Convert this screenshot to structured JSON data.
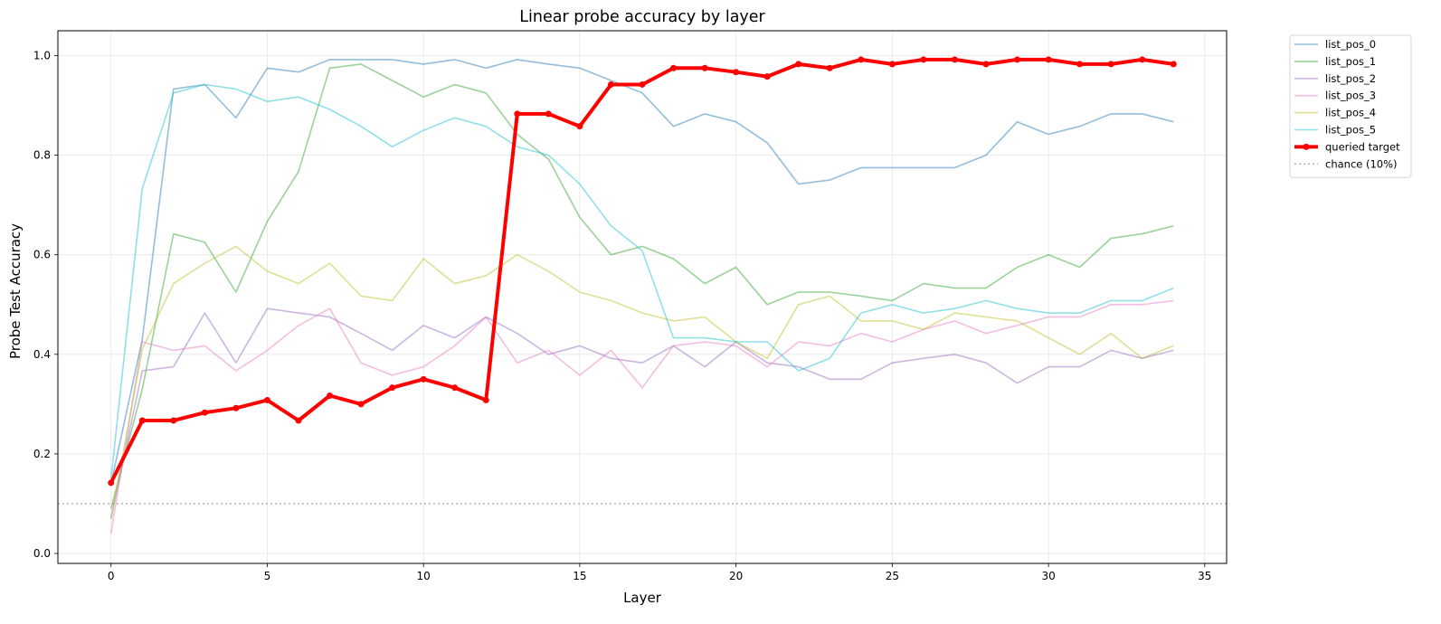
{
  "chart_data": {
    "type": "line",
    "title": "Linear probe accuracy by layer",
    "xlabel": "Layer",
    "ylabel": "Probe Test Accuracy",
    "xlim": [
      -1.7,
      35.7
    ],
    "ylim": [
      -0.02,
      1.05
    ],
    "xticks": [
      0,
      5,
      10,
      15,
      20,
      25,
      30,
      35
    ],
    "yticks": [
      0.0,
      0.2,
      0.4,
      0.6,
      0.8,
      1.0
    ],
    "xtick_labels": [
      "0",
      "5",
      "10",
      "15",
      "20",
      "25",
      "30",
      "35"
    ],
    "ytick_labels": [
      "0.0",
      "0.2",
      "0.4",
      "0.6",
      "0.8",
      "1.0"
    ],
    "grid": true,
    "legend_placement": "outside-top-right",
    "x": [
      0,
      1,
      2,
      3,
      4,
      5,
      6,
      7,
      8,
      9,
      10,
      11,
      12,
      13,
      14,
      15,
      16,
      17,
      18,
      19,
      20,
      21,
      22,
      23,
      24,
      25,
      26,
      27,
      28,
      29,
      30,
      31,
      32,
      33,
      34
    ],
    "series": [
      {
        "name": "list_pos_0",
        "color": "#1f77b4",
        "values": [
          0.14,
          0.43,
          0.933,
          0.942,
          0.875,
          0.975,
          0.967,
          0.992,
          0.992,
          0.992,
          0.983,
          0.992,
          0.975,
          0.992,
          0.983,
          0.975,
          0.95,
          0.925,
          0.858,
          0.883,
          0.867,
          0.825,
          0.742,
          0.75,
          0.775,
          0.775,
          0.775,
          0.775,
          0.8,
          0.867,
          0.842,
          0.858,
          0.883,
          0.883,
          0.867
        ]
      },
      {
        "name": "list_pos_1",
        "color": "#2ca02c",
        "values": [
          0.09,
          0.33,
          0.642,
          0.625,
          0.525,
          0.667,
          0.767,
          0.975,
          0.983,
          0.95,
          0.917,
          0.942,
          0.925,
          0.842,
          0.792,
          0.675,
          0.6,
          0.617,
          0.592,
          0.542,
          0.575,
          0.5,
          0.525,
          0.525,
          0.517,
          0.508,
          0.542,
          0.533,
          0.533,
          0.575,
          0.6,
          0.575,
          0.633,
          0.642,
          0.658
        ]
      },
      {
        "name": "list_pos_2",
        "color": "#9467bd",
        "values": [
          0.07,
          0.367,
          0.375,
          0.483,
          0.383,
          0.492,
          0.483,
          0.475,
          0.442,
          0.408,
          0.458,
          0.433,
          0.475,
          0.442,
          0.4,
          0.417,
          0.392,
          0.383,
          0.417,
          0.375,
          0.425,
          0.383,
          0.375,
          0.35,
          0.35,
          0.383,
          0.392,
          0.4,
          0.383,
          0.342,
          0.375,
          0.375,
          0.408,
          0.392,
          0.408
        ]
      },
      {
        "name": "list_pos_3",
        "color": "#e377c2",
        "values": [
          0.04,
          0.425,
          0.408,
          0.417,
          0.367,
          0.408,
          0.458,
          0.492,
          0.383,
          0.358,
          0.375,
          0.417,
          0.475,
          0.383,
          0.408,
          0.358,
          0.408,
          0.333,
          0.417,
          0.425,
          0.417,
          0.375,
          0.425,
          0.417,
          0.442,
          0.425,
          0.45,
          0.467,
          0.442,
          0.458,
          0.475,
          0.475,
          0.5,
          0.5,
          0.508
        ]
      },
      {
        "name": "list_pos_4",
        "color": "#bcbd22",
        "values": [
          0.07,
          0.41,
          0.542,
          0.583,
          0.617,
          0.567,
          0.542,
          0.583,
          0.517,
          0.508,
          0.592,
          0.542,
          0.558,
          0.6,
          0.567,
          0.525,
          0.508,
          0.483,
          0.467,
          0.475,
          0.425,
          0.392,
          0.5,
          0.517,
          0.467,
          0.467,
          0.45,
          0.483,
          0.475,
          0.467,
          0.433,
          0.4,
          0.442,
          0.392,
          0.417
        ]
      },
      {
        "name": "list_pos_5",
        "color": "#17becf",
        "values": [
          0.15,
          0.733,
          0.925,
          0.942,
          0.933,
          0.908,
          0.917,
          0.892,
          0.858,
          0.817,
          0.85,
          0.875,
          0.858,
          0.817,
          0.8,
          0.742,
          0.658,
          0.608,
          0.433,
          0.433,
          0.425,
          0.425,
          0.367,
          0.392,
          0.483,
          0.5,
          0.483,
          0.492,
          0.508,
          0.492,
          0.483,
          0.483,
          0.508,
          0.508,
          0.533
        ]
      },
      {
        "name": "queried target",
        "color": "#ff0000",
        "values": [
          0.142,
          0.267,
          0.267,
          0.283,
          0.292,
          0.308,
          0.267,
          0.317,
          0.3,
          0.333,
          0.35,
          0.333,
          0.308,
          0.883,
          0.883,
          0.858,
          0.942,
          0.942,
          0.975,
          0.975,
          0.967,
          0.958,
          0.983,
          0.975,
          0.992,
          0.983,
          0.992,
          0.992,
          0.983,
          0.992,
          0.992,
          0.983,
          0.983,
          0.992,
          0.983
        ]
      }
    ],
    "reference_line": {
      "name": "chance (10%)",
      "y": 0.1,
      "color": "#aaaaaa"
    }
  }
}
